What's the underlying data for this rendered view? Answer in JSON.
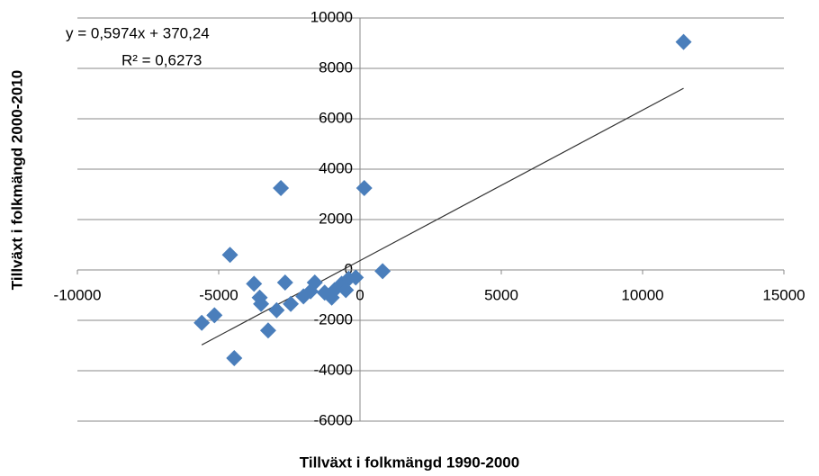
{
  "chart_data": {
    "type": "scatter",
    "x_label": "Tillväxt i folkmängd 1990-2000",
    "y_label": "Tillväxt i folkmängd 2000-2010",
    "xlim": [
      -10000,
      15000
    ],
    "ylim": [
      -6000,
      10000
    ],
    "xticks": [
      -10000,
      -5000,
      0,
      5000,
      10000,
      15000
    ],
    "yticks": [
      -6000,
      -4000,
      -2000,
      0,
      2000,
      4000,
      6000,
      8000,
      10000
    ],
    "grid": true,
    "color": "#4a7ebb",
    "x": [
      11450,
      150,
      -2800,
      -4600,
      800,
      -3750,
      -2650,
      -3550,
      -3500,
      -2950,
      -2450,
      -2000,
      -1600,
      -1250,
      -900,
      -650,
      -400,
      -150,
      -1000,
      -5150,
      -5600,
      -3250,
      -4450,
      -1750,
      -500
    ],
    "values": [
      9050,
      3250,
      3250,
      600,
      -50,
      -550,
      -500,
      -1100,
      -1350,
      -1600,
      -1350,
      -1050,
      -500,
      -900,
      -800,
      -550,
      -350,
      -300,
      -1100,
      -1800,
      -2100,
      -2400,
      -3500,
      -850,
      -800
    ],
    "trendline": {
      "label": "y = 0,5974x + 370,24",
      "r2_label": "R² = 0,6273",
      "slope": 0.5974,
      "intercept": 370.24,
      "color": "#333333"
    }
  }
}
